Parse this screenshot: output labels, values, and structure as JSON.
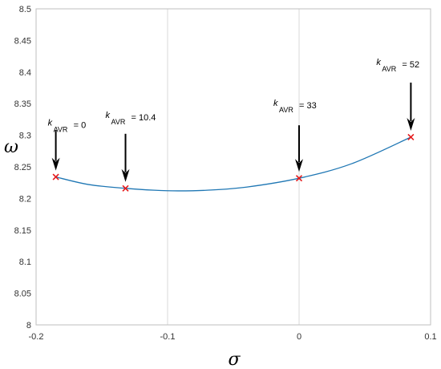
{
  "chart_data": {
    "type": "line",
    "title": "",
    "xlabel": "σ",
    "ylabel": "ω",
    "xlim": [
      -0.2,
      0.1
    ],
    "ylim": [
      8.0,
      8.5
    ],
    "x_ticks": [
      -0.2,
      -0.1,
      0,
      0.1
    ],
    "x_tick_labels": [
      "-0.2",
      "-0.1",
      "0",
      "0.1"
    ],
    "y_ticks": [
      8.0,
      8.05,
      8.1,
      8.15,
      8.2,
      8.25,
      8.3,
      8.35,
      8.4,
      8.45,
      8.5
    ],
    "y_tick_labels": [
      "8",
      "8.05",
      "8.1",
      "8.15",
      "8.2",
      "8.25",
      "8.3",
      "8.35",
      "8.4",
      "8.45",
      "8.5"
    ],
    "grid": true,
    "colors": {
      "curve": "#1f77b4",
      "markers": "#e41a1c",
      "arrows": "#000000",
      "grid": "#d9d9d9"
    },
    "curve": {
      "x": [
        -0.185,
        -0.16,
        -0.132,
        -0.11,
        -0.092,
        -0.07,
        -0.04,
        0.0,
        0.04,
        0.085
      ],
      "y": [
        8.234,
        8.222,
        8.216,
        8.213,
        8.212,
        8.213,
        8.218,
        8.232,
        8.255,
        8.297
      ]
    },
    "markers": {
      "x": [
        -0.185,
        -0.132,
        0.0,
        0.085
      ],
      "y": [
        8.234,
        8.216,
        8.232,
        8.297
      ]
    },
    "annotations": [
      {
        "k": "k",
        "sub": "AVR",
        "value": "= 0",
        "x": -0.185,
        "y": 8.234
      },
      {
        "k": "k",
        "sub": "AVR",
        "value": "= 10.4",
        "x": -0.132,
        "y": 8.216
      },
      {
        "k": "k",
        "sub": "AVR",
        "value": "= 33",
        "x": 0.0,
        "y": 8.232
      },
      {
        "k": "k",
        "sub": "AVR",
        "value": "= 52",
        "x": 0.085,
        "y": 8.297
      }
    ]
  }
}
